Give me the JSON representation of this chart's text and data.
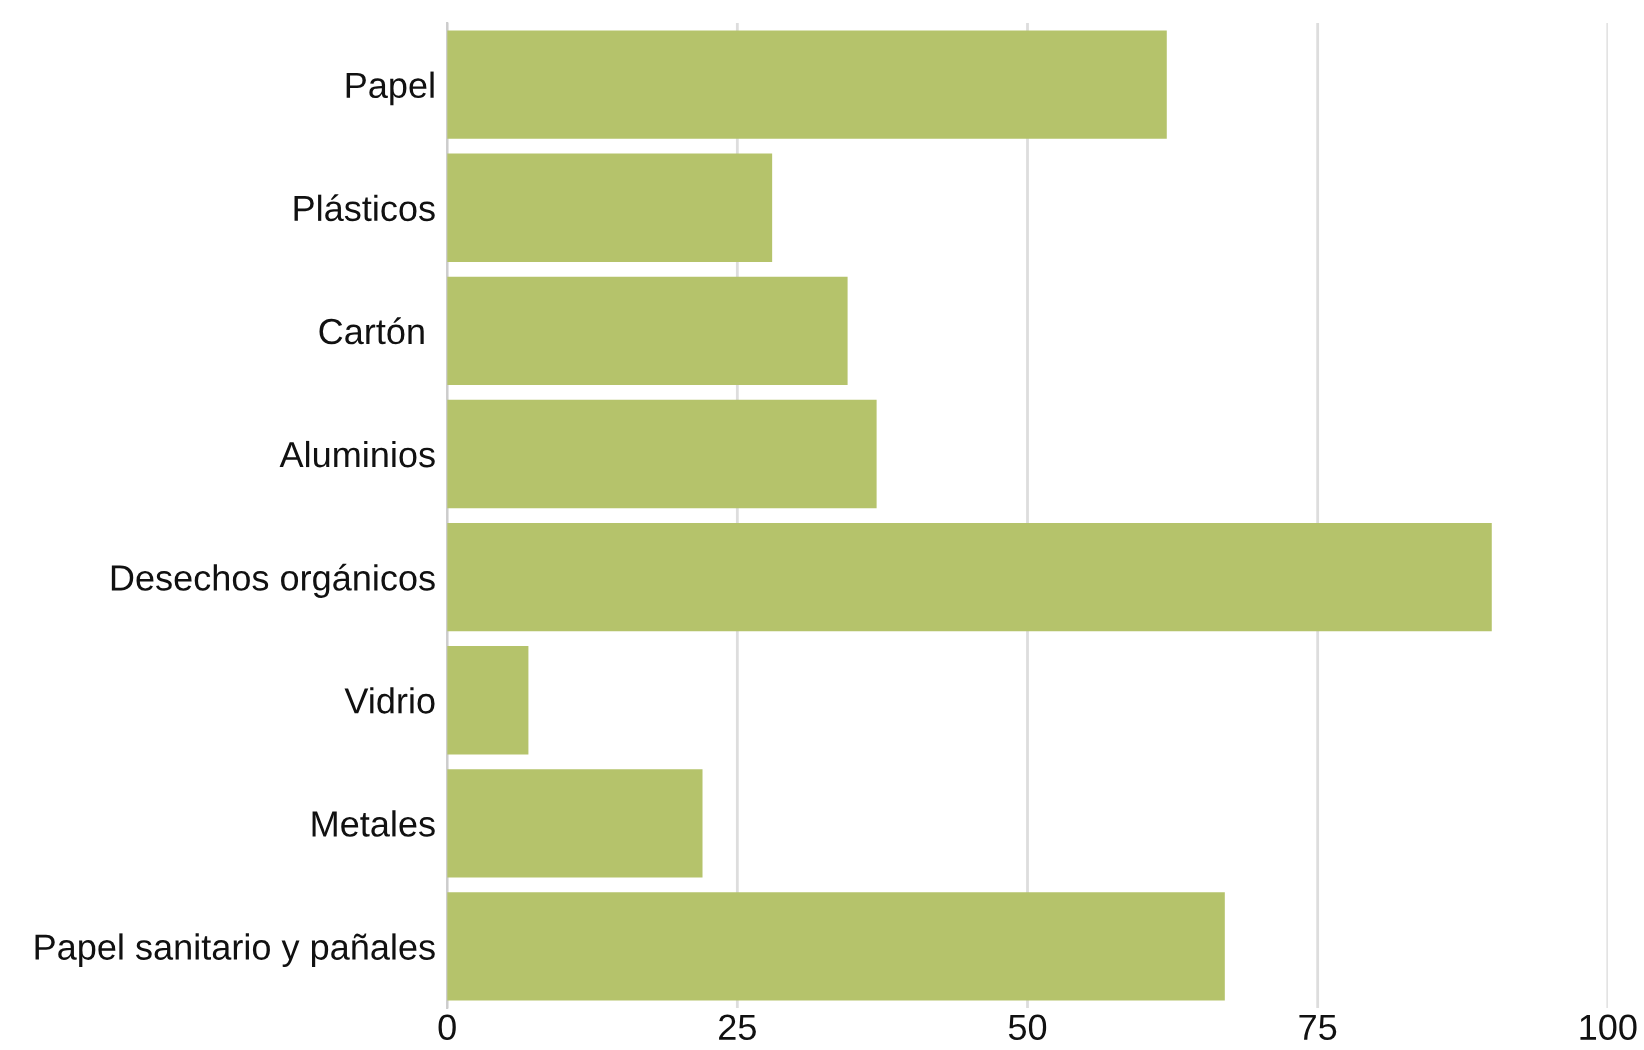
{
  "chart_data": {
    "type": "bar",
    "orientation": "horizontal",
    "categories": [
      "Papel",
      "Plásticos",
      "Cartón ",
      "Aluminios",
      "Desechos orgánicos",
      "Vidrio",
      "Metales",
      "Papel sanitario y pañales"
    ],
    "values": [
      62,
      28,
      34.5,
      37,
      90,
      7,
      22,
      67
    ],
    "color": "#b5c36b",
    "xlim": [
      0,
      100
    ],
    "xticks": [
      0,
      25,
      50,
      75,
      100
    ],
    "grid": "x"
  }
}
